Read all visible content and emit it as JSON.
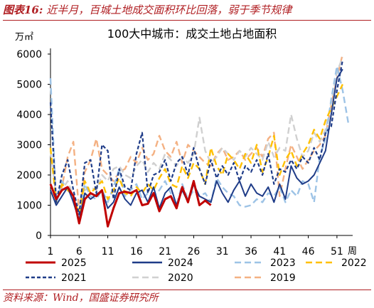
{
  "caption": {
    "label": "图表16:",
    "text": "近半月，百城土地成交面积环比回落，弱于季节规律"
  },
  "source": "资料来源：Wind，国盛证券研究所",
  "colors": {
    "2025": "#c00000",
    "2024": "#1f3c88",
    "2023": "#9dc3e6",
    "2022": "#ffc000",
    "2021": "#1f3c88",
    "2020": "#d0d0d0",
    "2019": "#f4b183"
  },
  "chart_data": {
    "type": "line",
    "title": "100大中城市：成交土地占地面积",
    "yunit": "万㎡",
    "xunit": "周",
    "ylim": [
      0,
      6000
    ],
    "yticks": [
      0,
      1000,
      2000,
      3000,
      4000,
      5000,
      6000
    ],
    "xlim": [
      1,
      53
    ],
    "xticks": [
      1,
      6,
      11,
      16,
      21,
      26,
      31,
      36,
      41,
      46,
      51
    ],
    "series": [
      {
        "name": "2025",
        "x": [
          1,
          2,
          3,
          4,
          5,
          6,
          7,
          8,
          9,
          10,
          11,
          12,
          13,
          14,
          15,
          16,
          17,
          18,
          19,
          20,
          21,
          22,
          23,
          24,
          25,
          26,
          27,
          28,
          29
        ],
        "values": [
          1700,
          1200,
          1500,
          1600,
          1300,
          400,
          1200,
          1400,
          1300,
          1500,
          300,
          900,
          1400,
          1450,
          1400,
          1500,
          1000,
          1050,
          1400,
          800,
          1200,
          1300,
          900,
          1600,
          1100,
          1800,
          1000,
          1150,
          1000
        ]
      },
      {
        "name": "2024",
        "x": [
          1,
          2,
          3,
          4,
          5,
          6,
          7,
          8,
          9,
          10,
          11,
          12,
          13,
          14,
          15,
          16,
          17,
          18,
          19,
          20,
          21,
          22,
          23,
          24,
          25,
          26,
          27,
          28,
          29,
          30,
          31,
          32,
          33,
          34,
          35,
          36,
          37,
          38,
          39,
          40,
          41,
          42,
          43,
          44,
          45,
          46,
          47,
          48,
          49,
          50,
          51,
          52
        ],
        "values": [
          1500,
          1000,
          1300,
          1600,
          1100,
          500,
          1400,
          1200,
          1350,
          1500,
          900,
          1100,
          1600,
          1200,
          1000,
          1400,
          1500,
          1100,
          1600,
          900,
          1400,
          1600,
          1000,
          1500,
          1100,
          1700,
          1300,
          1200,
          1100,
          1800,
          1400,
          1100,
          1500,
          1800,
          1300,
          1700,
          1400,
          1300,
          1600,
          1100,
          1700,
          1200,
          2300,
          1900,
          1700,
          1800,
          2000,
          2400,
          2800,
          4000,
          5200,
          5500
        ]
      },
      {
        "name": "2023",
        "x": [
          1,
          2,
          3,
          4,
          5,
          6,
          7,
          8,
          9,
          10,
          11,
          12,
          13,
          14,
          15,
          16,
          17,
          18,
          19,
          20,
          21,
          22,
          23,
          24,
          25,
          26,
          27,
          28,
          29,
          30,
          31,
          32,
          33,
          34,
          35,
          36,
          37,
          38,
          39,
          40,
          41,
          42,
          43,
          44,
          45,
          46,
          47,
          48,
          49,
          50,
          51,
          52,
          53
        ],
        "values": [
          5200,
          1000,
          1800,
          1500,
          1300,
          600,
          1700,
          1300,
          1200,
          1500,
          1100,
          1600,
          2200,
          1300,
          1500,
          1700,
          1200,
          1400,
          1300,
          1500,
          1800,
          1400,
          1000,
          1700,
          1200,
          1500,
          1300,
          1400,
          1100,
          1900,
          1600,
          1400,
          1300,
          1000,
          950,
          1000,
          1200,
          1100,
          1400,
          1300,
          1600,
          1100,
          1500,
          1300,
          1800,
          1700,
          1100,
          2600,
          3200,
          4500,
          5600,
          4800,
          3700
        ]
      },
      {
        "name": "2022",
        "x": [
          1,
          2,
          3,
          4,
          5,
          6,
          7,
          8,
          9,
          10,
          11,
          12,
          13,
          14,
          15,
          16,
          17,
          18,
          19,
          20,
          21,
          22,
          23,
          24,
          25,
          26,
          27,
          28,
          29,
          30,
          31,
          32,
          33,
          34,
          35,
          36,
          37,
          38,
          39,
          40,
          41,
          42,
          43,
          44,
          45,
          46,
          47,
          48,
          49,
          50,
          51,
          52
        ],
        "values": [
          2900,
          1100,
          1700,
          1500,
          1300,
          700,
          1800,
          1400,
          1600,
          1800,
          1200,
          1500,
          1900,
          1400,
          1300,
          1600,
          1400,
          1700,
          1500,
          1900,
          2200,
          1700,
          1600,
          2300,
          1900,
          2400,
          2200,
          1700,
          2900,
          2300,
          2000,
          2700,
          2500,
          2200,
          2700,
          2400,
          3000,
          2100,
          2600,
          3300,
          2000,
          2500,
          2800,
          2300,
          2700,
          3000,
          3500,
          3200,
          3800,
          4200,
          4600,
          5000
        ]
      },
      {
        "name": "2021",
        "x": [
          1,
          2,
          3,
          4,
          5,
          6,
          7,
          8,
          9,
          10,
          11,
          12,
          13,
          14,
          15,
          16,
          17,
          18,
          19,
          20,
          21,
          22,
          23,
          24,
          25,
          26,
          27,
          28,
          29,
          30,
          31,
          32,
          33,
          34,
          35,
          36,
          37,
          38,
          39,
          40,
          41,
          42,
          43,
          44,
          45,
          46,
          47,
          48,
          49,
          50,
          51,
          52
        ],
        "values": [
          4400,
          1100,
          2000,
          2500,
          1500,
          700,
          2400,
          2500,
          1400,
          3000,
          2800,
          1200,
          2200,
          1600,
          1500,
          2700,
          3400,
          1400,
          2000,
          2100,
          2500,
          1800,
          2400,
          2600,
          2000,
          2900,
          2200,
          1700,
          2500,
          1900,
          2300,
          2000,
          2400,
          1800,
          2300,
          2100,
          2500,
          2000,
          2700,
          1700,
          2200,
          2100,
          2500,
          2200,
          2600,
          2400,
          2900,
          2500,
          3400,
          3600,
          4800,
          5800
        ]
      },
      {
        "name": "2020",
        "x": [
          1,
          2,
          3,
          4,
          5,
          6,
          7,
          8,
          9,
          10,
          11,
          12,
          13,
          14,
          15,
          16,
          17,
          18,
          19,
          20,
          21,
          22,
          23,
          24,
          25,
          26,
          27,
          28,
          29,
          30,
          31,
          32,
          33,
          34,
          35,
          36,
          37,
          38,
          39,
          40,
          41,
          42,
          43,
          44,
          45,
          46,
          47,
          48,
          49,
          50,
          51,
          52
        ],
        "values": [
          2800,
          1300,
          1500,
          1800,
          1300,
          600,
          1500,
          1600,
          1500,
          2000,
          1800,
          2200,
          2300,
          2000,
          1900,
          2300,
          2500,
          2100,
          2400,
          2200,
          2700,
          2500,
          2300,
          2600,
          2400,
          2700,
          3900,
          2800,
          2400,
          2600,
          2900,
          2700,
          2500,
          2800,
          2600,
          2900,
          2700,
          2500,
          3100,
          2600,
          2900,
          2800,
          4000,
          3200,
          2600,
          2800,
          3400,
          3100,
          3500,
          4400,
          5400,
          5900
        ]
      },
      {
        "name": "2019",
        "x": [
          1,
          2,
          3,
          4,
          5,
          6,
          7,
          8,
          9,
          10,
          11,
          12,
          13,
          14,
          15,
          16,
          17,
          18,
          19,
          20,
          21,
          22,
          23,
          24,
          25,
          26,
          27,
          28,
          29,
          30,
          31,
          32,
          33,
          34,
          35,
          36,
          37,
          38,
          39,
          40,
          41,
          42,
          43,
          44,
          45,
          46,
          47,
          48,
          49,
          50,
          51,
          52
        ],
        "values": [
          1700,
          1100,
          1600,
          2600,
          3100,
          800,
          2100,
          2500,
          3200,
          2200,
          2000,
          1800,
          2100,
          2200,
          2600,
          2400,
          2900,
          2500,
          2700,
          3300,
          2800,
          2600,
          3100,
          2400,
          3000,
          2800,
          2600,
          2400,
          2300,
          2700,
          2900,
          2500,
          2600,
          2800,
          2500,
          2700,
          2900,
          2600,
          3200,
          3400,
          1300,
          2200,
          3000,
          2600,
          2200,
          2500,
          2800,
          3000,
          3300,
          4300,
          5200,
          6000
        ]
      }
    ]
  }
}
